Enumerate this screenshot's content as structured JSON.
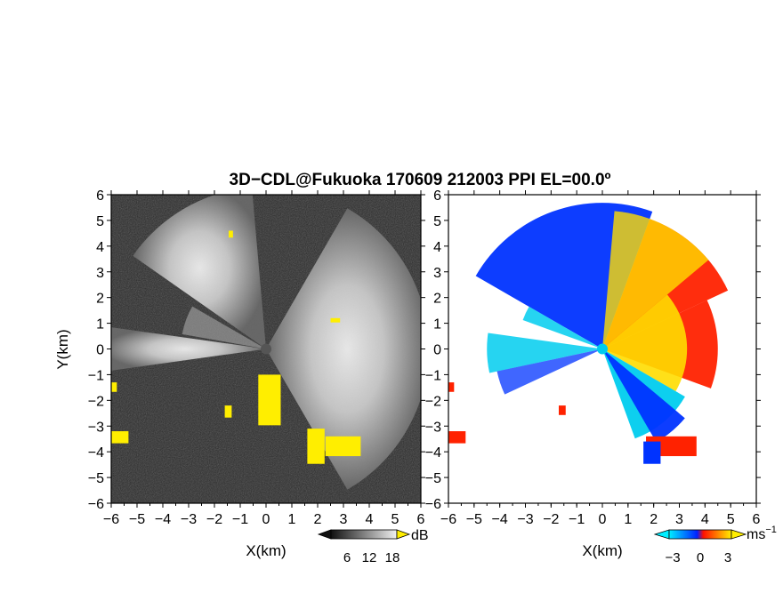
{
  "title": "3D−CDL@Fukuoka 170609 212003 PPI EL=00.0º",
  "chart_data": [
    {
      "type": "heatmap",
      "panel": "reflectivity",
      "xlabel": "X(km)",
      "ylabel": "Y(km)",
      "xlim": [
        -6,
        6
      ],
      "ylim": [
        -6,
        6
      ],
      "x_ticks": [
        "−6",
        "−5",
        "−4",
        "−3",
        "−2",
        "−1",
        "0",
        "1",
        "2",
        "3",
        "4",
        "5",
        "6"
      ],
      "y_ticks": [
        "6",
        "5",
        "4",
        "3",
        "2",
        "1",
        "0",
        "−1",
        "−2",
        "−3",
        "−4",
        "−5",
        "−6"
      ],
      "background_color": "#2a2a2a",
      "overlay_color": "#ffee00",
      "colorbar": {
        "unit": "dB",
        "ticks": [
          "6",
          "12",
          "18"
        ],
        "range": [
          0,
          24
        ]
      }
    },
    {
      "type": "heatmap",
      "panel": "doppler_velocity",
      "xlabel": "X(km)",
      "xlim": [
        -6,
        6
      ],
      "ylim": [
        -6,
        6
      ],
      "x_ticks": [
        "−6",
        "−5",
        "−4",
        "−3",
        "−2",
        "−1",
        "0",
        "1",
        "2",
        "3",
        "4",
        "5",
        "6"
      ],
      "y_ticks": [
        "6",
        "5",
        "4",
        "3",
        "2",
        "1",
        "0",
        "−1",
        "−2",
        "−3",
        "−4",
        "−5",
        "−6"
      ],
      "colors": {
        "negative_far": "#00ccee",
        "negative": "#0033ff",
        "positive": "#ff2200",
        "positive_far": "#ffdd00"
      },
      "colorbar": {
        "unit": "ms",
        "unit_exp": "−1",
        "ticks": [
          "−3",
          "0",
          "3"
        ],
        "range": [
          -5,
          5
        ]
      }
    }
  ]
}
